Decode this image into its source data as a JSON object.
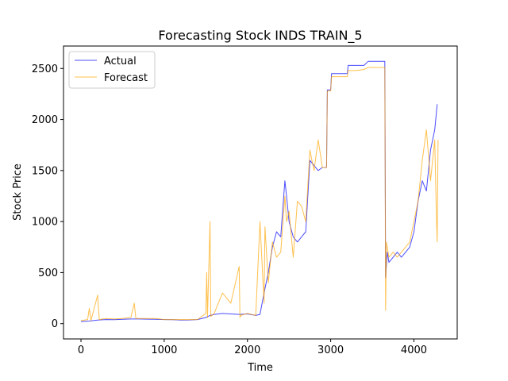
{
  "chart_data": {
    "type": "line",
    "title": "Forecasting Stock INDS TRAIN_5",
    "xlabel": "Time",
    "ylabel": "Stock Price",
    "xlim": [
      -210,
      4520
    ],
    "ylim": [
      -150,
      2720
    ],
    "xticks": [
      0,
      1000,
      2000,
      3000,
      4000
    ],
    "yticks": [
      0,
      500,
      1000,
      1500,
      2000,
      2500
    ],
    "grid": false,
    "legend_position": "upper-left",
    "series": [
      {
        "name": "Actual",
        "color": "#0000ff",
        "x": [
          0,
          100,
          200,
          300,
          400,
          500,
          600,
          700,
          800,
          900,
          1000,
          1100,
          1200,
          1300,
          1400,
          1500,
          1550,
          1600,
          1700,
          1800,
          1900,
          2000,
          2100,
          2150,
          2200,
          2250,
          2300,
          2350,
          2400,
          2450,
          2470,
          2500,
          2550,
          2600,
          2650,
          2700,
          2750,
          2800,
          2850,
          2900,
          2950,
          2960,
          3000,
          3010,
          3100,
          3200,
          3210,
          3300,
          3400,
          3450,
          3500,
          3600,
          3650,
          3660,
          3680,
          3700,
          3750,
          3800,
          3850,
          3900,
          3950,
          4000,
          4050,
          4100,
          4150,
          4200,
          4250,
          4280
        ],
        "y": [
          20,
          25,
          35,
          40,
          38,
          42,
          45,
          45,
          44,
          43,
          40,
          38,
          35,
          36,
          40,
          60,
          80,
          90,
          100,
          95,
          90,
          95,
          80,
          90,
          300,
          500,
          750,
          900,
          850,
          1400,
          1250,
          1000,
          850,
          800,
          850,
          900,
          1600,
          1550,
          1500,
          1530,
          1530,
          2290,
          2290,
          2450,
          2450,
          2450,
          2530,
          2530,
          2530,
          2570,
          2570,
          2570,
          2570,
          450,
          700,
          600,
          650,
          700,
          650,
          700,
          750,
          900,
          1200,
          1400,
          1300,
          1700,
          1900,
          2150
        ]
      },
      {
        "name": "Forecast",
        "color": "#ffa500",
        "x": [
          0,
          80,
          100,
          120,
          200,
          220,
          300,
          400,
          500,
          600,
          640,
          660,
          700,
          800,
          900,
          1000,
          1100,
          1200,
          1300,
          1400,
          1500,
          1510,
          1520,
          1550,
          1560,
          1600,
          1700,
          1800,
          1900,
          1910,
          1920,
          2000,
          2100,
          2150,
          2200,
          2210,
          2250,
          2300,
          2350,
          2400,
          2450,
          2470,
          2500,
          2550,
          2600,
          2650,
          2700,
          2750,
          2800,
          2850,
          2900,
          2950,
          2960,
          3000,
          3010,
          3100,
          3200,
          3210,
          3300,
          3400,
          3450,
          3500,
          3600,
          3650,
          3660,
          3670,
          3700,
          3750,
          3800,
          3850,
          3900,
          3950,
          4000,
          4050,
          4100,
          4150,
          4200,
          4250,
          4270,
          4280,
          4290
        ],
        "y": [
          30,
          40,
          150,
          30,
          280,
          40,
          50,
          45,
          50,
          60,
          200,
          50,
          50,
          50,
          50,
          40,
          40,
          40,
          40,
          40,
          100,
          500,
          60,
          1000,
          70,
          100,
          300,
          200,
          560,
          60,
          80,
          100,
          80,
          1000,
          200,
          950,
          400,
          800,
          650,
          700,
          1250,
          1000,
          1100,
          650,
          1200,
          1150,
          1000,
          1700,
          1500,
          1800,
          1530,
          1530,
          2280,
          2280,
          2420,
          2420,
          2420,
          2480,
          2480,
          2490,
          2510,
          2510,
          2510,
          2510,
          130,
          800,
          650,
          700,
          650,
          700,
          750,
          800,
          1000,
          1200,
          1600,
          1900,
          1400,
          1800,
          1050,
          800,
          1800
        ]
      }
    ]
  }
}
